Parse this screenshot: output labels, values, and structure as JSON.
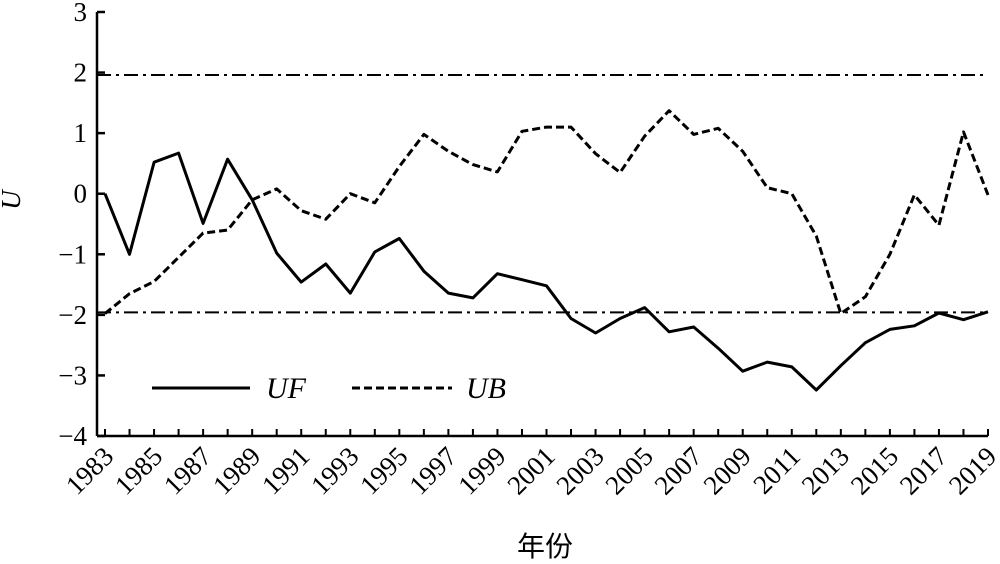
{
  "chart_data": {
    "type": "line",
    "xlabel": "年份",
    "ylabel": "U",
    "ylim": [
      -4,
      3
    ],
    "yticks": [
      "3",
      "2",
      "1",
      "0",
      "−1",
      "−2",
      "−3",
      "−4"
    ],
    "xtick_labels": [
      "1983",
      "1985",
      "1987",
      "1989",
      "1991",
      "1993",
      "1995",
      "1997",
      "1999",
      "2001",
      "2003",
      "2005",
      "2007",
      "2009",
      "2011",
      "2013",
      "2015",
      "2017",
      "2019"
    ],
    "x": [
      1983,
      1984,
      1985,
      1986,
      1987,
      1988,
      1989,
      1990,
      1991,
      1992,
      1993,
      1994,
      1995,
      1996,
      1997,
      1998,
      1999,
      2000,
      2001,
      2002,
      2003,
      2004,
      2005,
      2006,
      2007,
      2008,
      2009,
      2010,
      2011,
      2012,
      2013,
      2014,
      2015,
      2016,
      2017,
      2018,
      2019
    ],
    "series": [
      {
        "name": "UF",
        "style": "solid",
        "values": [
          0.0,
          -1.0,
          0.52,
          0.67,
          -0.49,
          0.57,
          -0.1,
          -0.98,
          -1.46,
          -1.16,
          -1.64,
          -0.96,
          -0.74,
          -1.28,
          -1.64,
          -1.72,
          -1.32,
          -1.42,
          -1.52,
          -2.06,
          -2.3,
          -2.06,
          -1.88,
          -2.28,
          -2.2,
          -2.55,
          -2.93,
          -2.78,
          -2.86,
          -3.24,
          -2.84,
          -2.46,
          -2.24,
          -2.18,
          -1.97,
          -2.08,
          -1.95
        ]
      },
      {
        "name": "UB",
        "style": "dashed",
        "values": [
          -1.98,
          -1.65,
          -1.45,
          -1.05,
          -0.65,
          -0.6,
          -0.1,
          0.08,
          -0.28,
          -0.42,
          0.0,
          -0.15,
          0.45,
          0.98,
          0.7,
          0.48,
          0.36,
          1.03,
          1.1,
          1.1,
          0.66,
          0.35,
          0.95,
          1.37,
          0.98,
          1.08,
          0.7,
          0.1,
          0.0,
          -0.7,
          -1.98,
          -1.7,
          -1.0,
          -0.02,
          -0.52,
          1.02,
          -0.02
        ]
      }
    ],
    "reference_lines": [
      1.96,
      -1.96
    ],
    "legend_position": "bottom-left",
    "grid": false
  }
}
